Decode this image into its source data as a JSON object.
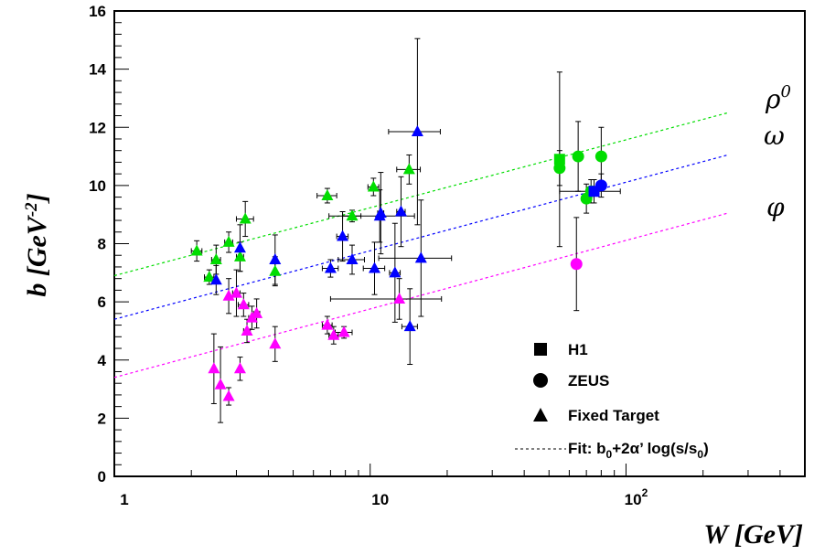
{
  "chart_data": {
    "type": "scatter",
    "xscale": "log",
    "xlim": [
      1,
      500
    ],
    "ylim": [
      0,
      16
    ],
    "x_ticks": [
      {
        "value": 1,
        "label": "1",
        "sup": ""
      },
      {
        "value": 10,
        "label": "10",
        "sup": ""
      },
      {
        "value": 100,
        "label": "10",
        "sup": "2"
      }
    ],
    "y_ticks": [
      0,
      2,
      4,
      6,
      8,
      10,
      12,
      14,
      16
    ],
    "xlabel": "W [GeV]",
    "ylabel": {
      "base": "b [GeV",
      "sup": "-2",
      "tail": "]"
    },
    "curve_labels": [
      {
        "text": "ρ",
        "sup": "0",
        "color": "#00dd00"
      },
      {
        "text": "ω",
        "sup": "",
        "color": "#00dd00"
      },
      {
        "text": "φ",
        "sup": "",
        "color": "#ff00ff"
      }
    ],
    "legend": {
      "position": "bottom-right",
      "items": [
        {
          "marker": "square",
          "label": "H1"
        },
        {
          "marker": "circle",
          "label": "ZEUS"
        },
        {
          "marker": "triangle",
          "label": "Fixed Target"
        },
        {
          "marker": "dashed-line",
          "label": "Fit: b",
          "sub1": "0",
          "mid": "+2α’ log(s/s",
          "sub2": "0",
          "tail": ")"
        }
      ]
    },
    "fits": [
      {
        "name": "",
        "color": "#00dd00",
        "x": [
          1,
          250
        ],
        "y": [
          6.9,
          12.5
        ]
      },
      {
        "name": "",
        "color": "#0000ff",
        "x": [
          1,
          250
        ],
        "y": [
          5.4,
          11.05
        ]
      },
      {
        "name": "",
        "color": "#ff00ff",
        "x": [
          1,
          250
        ],
        "y": [
          3.4,
          9.05
        ]
      }
    ],
    "series": [
      {
        "name": "",
        "color": "#00dd00",
        "points": [
          {
            "x": 2.1,
            "y": 7.75,
            "m": "triangle",
            "xe": 0.1,
            "ye": 0.35
          },
          {
            "x": 2.35,
            "y": 6.85,
            "m": "triangle",
            "xe": 0.1,
            "ye": 0.25
          },
          {
            "x": 2.5,
            "y": 7.45,
            "m": "triangle",
            "xe": 0.1,
            "ye": 0.5
          },
          {
            "x": 2.8,
            "y": 8.05,
            "m": "triangle",
            "xe": 0.1,
            "ye": 0.35
          },
          {
            "x": 3.1,
            "y": 7.55,
            "m": "triangle",
            "xe": 0.1,
            "ye": 0.5
          },
          {
            "x": 3.25,
            "y": 8.85,
            "m": "triangle",
            "xe": 0.25,
            "ye": 0.6
          },
          {
            "x": 4.25,
            "y": 7.05,
            "m": "triangle",
            "xe": 0,
            "ye": 0.5
          },
          {
            "x": 6.8,
            "y": 9.65,
            "m": "triangle",
            "xe": 0.6,
            "ye": 0.25
          },
          {
            "x": 8.5,
            "y": 8.95,
            "m": "triangle",
            "xe": 0.7,
            "ye": 0.2
          },
          {
            "x": 10.3,
            "y": 9.95,
            "m": "triangle",
            "xe": 0.5,
            "ye": 0.3
          },
          {
            "x": 14.2,
            "y": 10.55,
            "m": "triangle",
            "xe": 1.5,
            "ye": 0.5
          },
          {
            "x": 55,
            "y": 10.9,
            "m": "square",
            "xe": 0,
            "ye": 3.0
          },
          {
            "x": 55,
            "y": 10.6,
            "m": "circle",
            "xe": 0,
            "ye": 0.6
          },
          {
            "x": 65,
            "y": 11.0,
            "m": "circle",
            "xe": 0,
            "ye": 1.2
          },
          {
            "x": 70,
            "y": 9.55,
            "m": "circle",
            "xe": 0,
            "ye": 0.5
          },
          {
            "x": 73,
            "y": 9.8,
            "m": "circle",
            "xe": 0,
            "ye": 0.4
          },
          {
            "x": 80,
            "y": 11.0,
            "m": "circle",
            "xe": 0,
            "ye": 1.0
          }
        ]
      },
      {
        "name": "",
        "color": "#0000ff",
        "points": [
          {
            "x": 2.5,
            "y": 6.75,
            "m": "triangle",
            "xe": 0,
            "ye": 0.5
          },
          {
            "x": 3.1,
            "y": 7.85,
            "m": "triangle",
            "xe": 0,
            "ye": 0.8
          },
          {
            "x": 4.25,
            "y": 7.45,
            "m": "triangle",
            "xe": 0,
            "ye": 0.85
          },
          {
            "x": 7.0,
            "y": 7.15,
            "m": "triangle",
            "xe": 0.5,
            "ye": 0.3
          },
          {
            "x": 7.8,
            "y": 8.25,
            "m": "triangle",
            "xe": 0.4,
            "ye": 0.85
          },
          {
            "x": 8.5,
            "y": 7.45,
            "m": "triangle",
            "xe": 1.0,
            "ye": 0.5
          },
          {
            "x": 10.4,
            "y": 7.15,
            "m": "triangle",
            "xe": 1.0,
            "ye": 0.9
          },
          {
            "x": 10.9,
            "y": 8.95,
            "m": "triangle",
            "xe": 4.0,
            "ye": 0.9
          },
          {
            "x": 11.0,
            "y": 9.05,
            "m": "triangle",
            "xe": 0.3,
            "ye": 1.4
          },
          {
            "x": 12.5,
            "y": 7.0,
            "m": "triangle",
            "xe": 0.6,
            "ye": 1.7
          },
          {
            "x": 13.2,
            "y": 9.1,
            "m": "triangle",
            "xe": 0.5,
            "ye": 1.2
          },
          {
            "x": 14.3,
            "y": 5.15,
            "m": "triangle",
            "xe": 1.0,
            "ye": 1.3
          },
          {
            "x": 15.3,
            "y": 11.85,
            "m": "triangle",
            "xe": 3.5,
            "ye": 3.2
          },
          {
            "x": 15.8,
            "y": 7.5,
            "m": "triangle",
            "xe": 5.0,
            "ye": 2.0
          },
          {
            "x": 80,
            "y": 10.0,
            "m": "circle",
            "xe": 0,
            "ye": 0.4
          },
          {
            "x": 75,
            "y": 9.8,
            "m": "square",
            "xe": 20,
            "ye": 0.4
          }
        ]
      },
      {
        "name": "",
        "color": "#ff00ff",
        "points": [
          {
            "x": 2.45,
            "y": 3.7,
            "m": "triangle",
            "xe": 0,
            "ye": 1.2
          },
          {
            "x": 2.6,
            "y": 3.15,
            "m": "triangle",
            "xe": 0,
            "ye": 1.3
          },
          {
            "x": 2.8,
            "y": 2.75,
            "m": "triangle",
            "xe": 0,
            "ye": 0.3
          },
          {
            "x": 2.8,
            "y": 6.2,
            "m": "triangle",
            "xe": 0,
            "ye": 0.6
          },
          {
            "x": 3.0,
            "y": 6.3,
            "m": "triangle",
            "xe": 0.1,
            "ye": 0.8
          },
          {
            "x": 3.1,
            "y": 3.7,
            "m": "triangle",
            "xe": 0,
            "ye": 0.4
          },
          {
            "x": 3.2,
            "y": 5.9,
            "m": "triangle",
            "xe": 0.15,
            "ye": 0.4
          },
          {
            "x": 3.3,
            "y": 5.0,
            "m": "triangle",
            "xe": 0.1,
            "ye": 0.4
          },
          {
            "x": 3.45,
            "y": 5.45,
            "m": "triangle",
            "xe": 0.1,
            "ye": 0.4
          },
          {
            "x": 3.6,
            "y": 5.6,
            "m": "triangle",
            "xe": 0.1,
            "ye": 0.5
          },
          {
            "x": 4.25,
            "y": 4.55,
            "m": "triangle",
            "xe": 0,
            "ye": 0.6
          },
          {
            "x": 6.8,
            "y": 5.2,
            "m": "triangle",
            "xe": 0.3,
            "ye": 0.3
          },
          {
            "x": 7.2,
            "y": 4.85,
            "m": "triangle",
            "xe": 0.3,
            "ye": 0.3
          },
          {
            "x": 7.9,
            "y": 4.95,
            "m": "triangle",
            "xe": 0.6,
            "ye": 0.2
          },
          {
            "x": 13.0,
            "y": 6.1,
            "m": "triangle",
            "xe": 6.0,
            "ye": 0.7
          },
          {
            "x": 64,
            "y": 7.3,
            "m": "circle",
            "xe": 0,
            "ye": 1.6
          }
        ]
      }
    ]
  }
}
